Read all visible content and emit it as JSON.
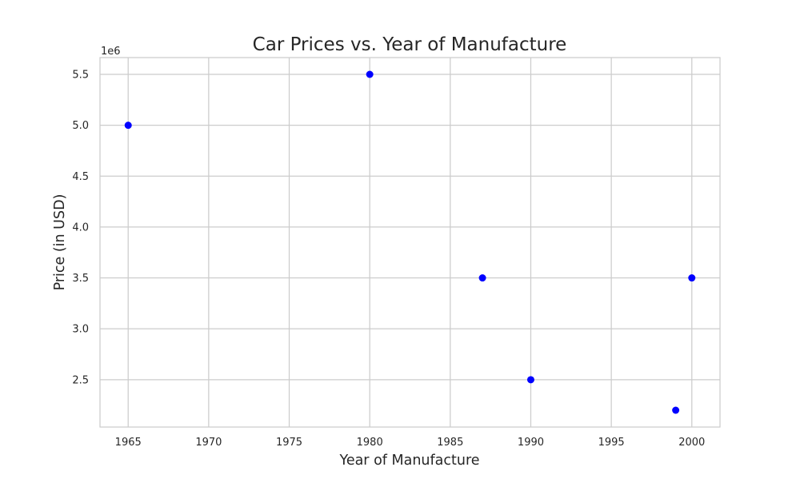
{
  "chart_data": {
    "type": "scatter",
    "title": "Car Prices vs. Year of Manufacture",
    "xlabel": "Year of Manufacture",
    "ylabel": "Price (in USD)",
    "y_offset_label": "1e6",
    "x": [
      1965,
      1980,
      1987,
      1990,
      1999,
      2000
    ],
    "y": [
      5000000,
      5500000,
      3500000,
      2500000,
      2200000,
      3500000
    ],
    "xlim": [
      1963.25,
      2001.75
    ],
    "ylim": [
      2035000,
      5665000
    ],
    "x_ticks": [
      1965,
      1970,
      1975,
      1980,
      1985,
      1990,
      1995,
      2000
    ],
    "x_tick_labels": [
      "1965",
      "1970",
      "1975",
      "1980",
      "1985",
      "1990",
      "1995",
      "2000"
    ],
    "y_ticks": [
      2500000,
      3000000,
      3500000,
      4000000,
      4500000,
      5000000,
      5500000
    ],
    "y_tick_labels": [
      "2.5",
      "3.0",
      "3.5",
      "4.0",
      "4.5",
      "5.0",
      "5.5"
    ],
    "grid": true,
    "marker_color": "#0000ff",
    "grid_color": "#cccccc",
    "spine_color": "#cccccc"
  }
}
